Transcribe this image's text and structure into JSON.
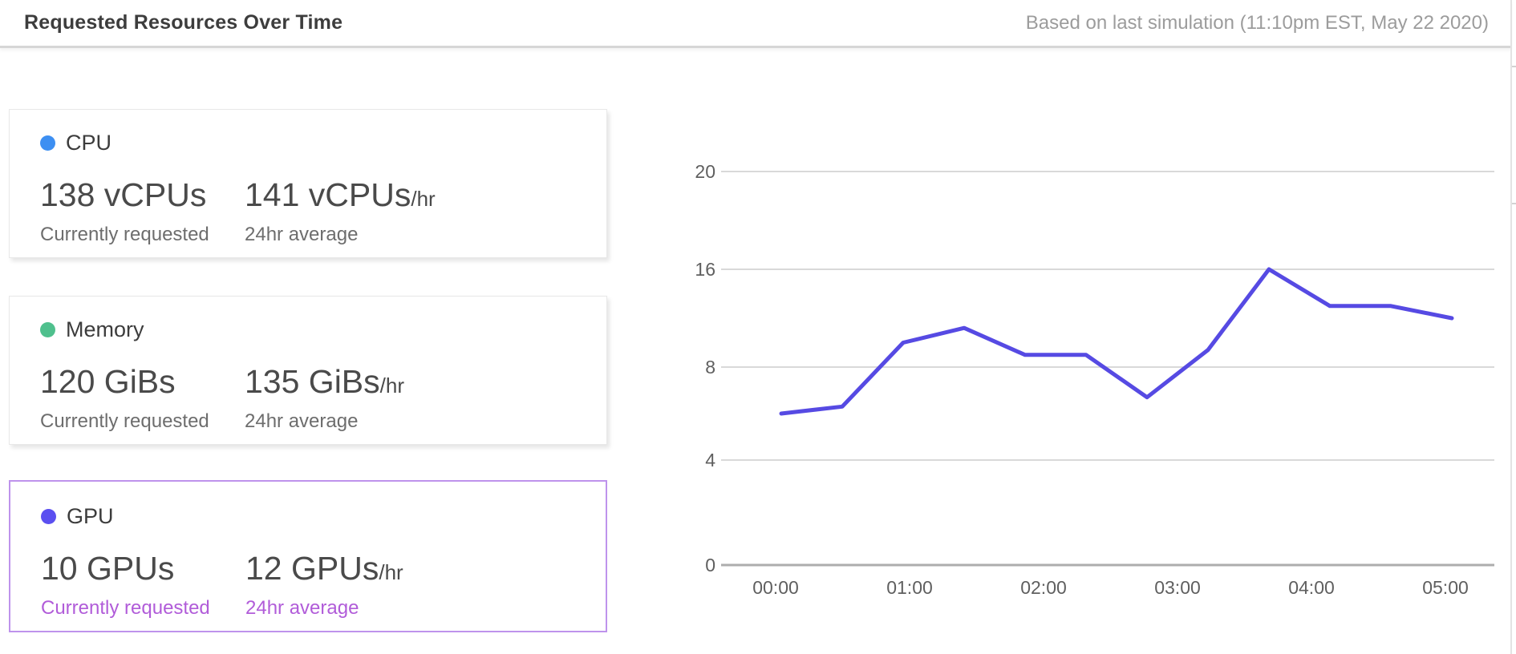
{
  "header": {
    "title": "Requested Resources Over Time",
    "subtitle": "Based on last simulation (11:10pm EST, May 22 2020)"
  },
  "cards": [
    {
      "id": "cpu",
      "label": "CPU",
      "dot_color": "#3D8FF2",
      "current_value": "138 vCPUs",
      "current_caption": "Currently requested",
      "average_value": "141 vCPUs",
      "average_suffix": "/hr",
      "average_caption": "24hr average",
      "selected": false
    },
    {
      "id": "memory",
      "label": "Memory",
      "dot_color": "#4FC08D",
      "current_value": "120 GiBs",
      "current_caption": "Currently requested",
      "average_value": "135 GiBs",
      "average_suffix": "/hr",
      "average_caption": "24hr average",
      "selected": false
    },
    {
      "id": "gpu",
      "label": "GPU",
      "dot_color": "#5B4FF0",
      "current_value": "10 GPUs",
      "current_caption": "Currently requested",
      "average_value": "12 GPUs",
      "average_suffix": "/hr",
      "average_caption": "24hr average",
      "selected": true,
      "accent_text_color": "#B15CD9",
      "selected_border_color": "#BE93EC"
    }
  ],
  "chart_data": {
    "type": "line",
    "title": "",
    "xlabel": "",
    "ylabel": "",
    "x_tick_labels": [
      "00:00",
      "01:00",
      "02:00",
      "03:00",
      "04:00",
      "05:00"
    ],
    "y_tick_labels": [
      20,
      16,
      8,
      4,
      0
    ],
    "ylim": [
      0,
      20
    ],
    "grid": true,
    "legend": "none",
    "line_color": "#564AE3",
    "series": [
      {
        "name": "GPU requested",
        "values": [
          6,
          6.3,
          10,
          11.2,
          9,
          9,
          6.7,
          9.4,
          16,
          13,
          13,
          12
        ]
      }
    ]
  }
}
